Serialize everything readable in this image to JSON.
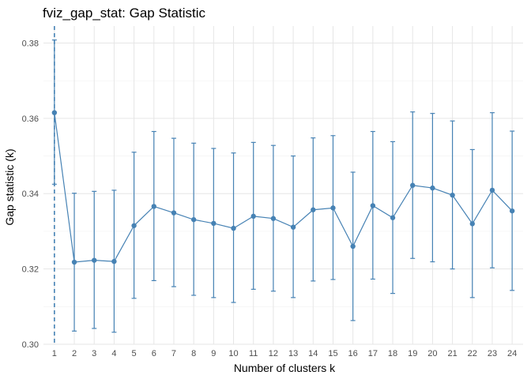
{
  "chart_data": {
    "type": "line",
    "title": "fviz_gap_stat: Gap Statistic",
    "xlabel": "Number of clusters k",
    "ylabel": "Gap statistic (k)",
    "ylim": [
      0.3,
      0.3845
    ],
    "yticks": [
      0.3,
      0.32,
      0.34,
      0.36,
      0.38
    ],
    "ytick_labels": [
      "0.30",
      "0.32",
      "0.34",
      "0.36",
      "0.38"
    ],
    "grid": true,
    "legend": "none",
    "color": "#4682b4",
    "optimal_k": 1,
    "x": [
      1,
      2,
      3,
      4,
      5,
      6,
      7,
      8,
      9,
      10,
      11,
      12,
      13,
      14,
      15,
      16,
      17,
      18,
      19,
      20,
      21,
      22,
      23,
      24
    ],
    "series": [
      {
        "values": [
          0.3615,
          0.3218,
          0.3223,
          0.322,
          0.3315,
          0.3366,
          0.3349,
          0.3331,
          0.3321,
          0.3308,
          0.334,
          0.3334,
          0.3311,
          0.3357,
          0.3362,
          0.326,
          0.3368,
          0.3336,
          0.3422,
          0.3415,
          0.3396,
          0.332,
          0.3409,
          0.3354
        ],
        "error_lower": [
          0.3425,
          0.3035,
          0.3042,
          0.3032,
          0.3122,
          0.3169,
          0.3153,
          0.313,
          0.3124,
          0.3111,
          0.3146,
          0.3141,
          0.3124,
          0.3168,
          0.3172,
          0.3063,
          0.3173,
          0.3135,
          0.3228,
          0.3219,
          0.32,
          0.3124,
          0.3203,
          0.3143
        ],
        "error_upper": [
          0.3808,
          0.3401,
          0.3406,
          0.3409,
          0.351,
          0.3565,
          0.3547,
          0.3534,
          0.352,
          0.3508,
          0.3536,
          0.3528,
          0.35,
          0.3548,
          0.3554,
          0.3457,
          0.3565,
          0.3538,
          0.3617,
          0.3613,
          0.3593,
          0.3517,
          0.3615,
          0.3566
        ]
      }
    ]
  }
}
